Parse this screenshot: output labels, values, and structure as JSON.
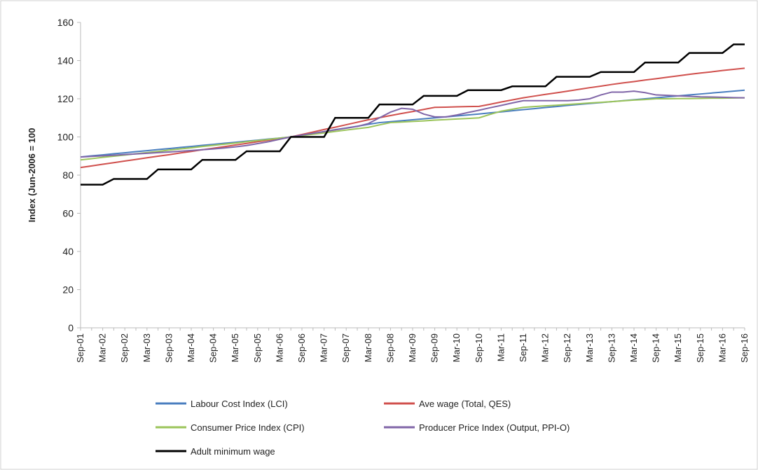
{
  "chart_data": {
    "type": "line",
    "y_label": "Index (Jun-2006 = 100",
    "categories": [
      "Sep-01",
      null,
      "Mar-02",
      null,
      "Sep-02",
      null,
      "Mar-03",
      null,
      "Sep-03",
      null,
      "Mar-04",
      null,
      "Sep-04",
      null,
      "Mar-05",
      null,
      "Sep-05",
      null,
      "Mar-06",
      null,
      "Sep-06",
      null,
      "Mar-07",
      null,
      "Sep-07",
      null,
      "Mar-08",
      null,
      "Sep-08",
      null,
      "Mar-09",
      null,
      "Sep-09",
      null,
      "Mar-10",
      null,
      "Sep-10",
      null,
      "Mar-11",
      null,
      "Sep-11",
      null,
      "Mar-12",
      null,
      "Sep-12",
      null,
      "Mar-13",
      null,
      "Sep-13",
      null,
      "Mar-14",
      null,
      "Sep-14",
      null,
      "Mar-15",
      null,
      "Sep-15",
      null,
      "Mar-16",
      null,
      "Sep-16"
    ],
    "series": [
      {
        "name": "Labour Cost Index (LCI)",
        "color": "#4a7ebf",
        "values": [
          89.5,
          90.1,
          90.6,
          91.2,
          91.7,
          92.3,
          92.8,
          93.4,
          93.9,
          94.5,
          95.0,
          95.6,
          96.1,
          96.7,
          97.2,
          97.8,
          98.3,
          98.9,
          99.4,
          100,
          100.9,
          101.9,
          102.8,
          103.8,
          104.7,
          105.6,
          106.6,
          107.5,
          108,
          108.5,
          109,
          109.5,
          110,
          110.5,
          111,
          111.5,
          112,
          112.6,
          113.1,
          113.7,
          114.3,
          114.8,
          115.4,
          115.9,
          116.5,
          117,
          117.5,
          118,
          118.5,
          119,
          119.5,
          120,
          120.5,
          121,
          121.5,
          122,
          122.5,
          123,
          123.5,
          124,
          124.5
        ]
      },
      {
        "name": "Ave wage (Total, QES)",
        "color": "#d0504d",
        "values": [
          84,
          84.8,
          85.7,
          86.5,
          87.4,
          88.2,
          89.1,
          89.9,
          90.7,
          91.6,
          92.4,
          93.3,
          94.1,
          94.9,
          95.8,
          96.6,
          97.5,
          98.3,
          99.2,
          100,
          101.3,
          102.6,
          103.9,
          105.1,
          106.4,
          107.7,
          109,
          110.1,
          111.2,
          112.3,
          113.3,
          114.4,
          115.5,
          115.6,
          115.8,
          115.9,
          116,
          117.1,
          118.3,
          119.4,
          120.5,
          121.4,
          122.3,
          123.1,
          124,
          124.9,
          125.8,
          126.6,
          127.5,
          128.3,
          129,
          129.8,
          130.5,
          131.3,
          132,
          132.8,
          133.5,
          134.1,
          134.8,
          135.4,
          136
        ]
      },
      {
        "name": "Consumer Price Index (CPI)",
        "color": "#9bc45a",
        "values": [
          88,
          88.6,
          89.3,
          89.9,
          90.5,
          91.2,
          91.8,
          92.4,
          93.1,
          93.7,
          94.3,
          95,
          95.6,
          96.2,
          96.8,
          97.5,
          98.1,
          98.7,
          99.4,
          100,
          100.7,
          101.4,
          102.1,
          102.9,
          103.6,
          104.3,
          105,
          106.3,
          107.5,
          107.8,
          108.1,
          108.4,
          108.8,
          109.1,
          109.4,
          109.7,
          110,
          111.8,
          113.5,
          114.5,
          115.5,
          115.9,
          116.3,
          116.6,
          117,
          117.4,
          117.8,
          118.1,
          118.5,
          118.9,
          119.3,
          119.6,
          120,
          120,
          120.1,
          120.1,
          120.2,
          120.3,
          120.3,
          120.4,
          120.5
        ]
      },
      {
        "name": "Producer Price Index (Output, PPI-O)",
        "color": "#8066a8",
        "values": [
          89.5,
          89.8,
          90.1,
          90.4,
          90.8,
          91.1,
          91.4,
          91.8,
          92.1,
          92.5,
          92.9,
          93.3,
          93.7,
          94.2,
          94.8,
          95.5,
          96.5,
          97.5,
          98.8,
          100,
          101,
          101.9,
          102.8,
          103.7,
          104.6,
          105.5,
          107,
          110,
          113,
          115,
          114.5,
          112,
          110.5,
          110.5,
          111.5,
          112.8,
          114,
          115.3,
          116.5,
          117.8,
          119,
          119,
          119,
          119,
          119,
          119.3,
          120,
          122,
          123.5,
          123.5,
          124,
          123.2,
          122,
          121.8,
          121.5,
          121.3,
          121,
          120.9,
          120.8,
          120.6,
          120.5
        ]
      },
      {
        "name": "Adult minimum wage",
        "color": "#000000",
        "values": [
          75,
          75,
          75,
          78,
          78,
          78,
          78,
          83,
          83,
          83,
          83,
          88,
          88,
          88,
          88,
          92.5,
          92.5,
          92.5,
          92.5,
          100,
          100,
          100,
          100,
          110,
          110,
          110,
          110,
          117,
          117,
          117,
          117,
          121.5,
          121.5,
          121.5,
          121.5,
          124.5,
          124.5,
          124.5,
          124.5,
          126.5,
          126.5,
          126.5,
          126.5,
          131.5,
          131.5,
          131.5,
          131.5,
          134,
          134,
          134,
          134,
          139,
          139,
          139,
          139,
          144,
          144,
          144,
          144,
          148.5,
          148.5
        ]
      }
    ],
    "ylim": [
      0,
      160
    ],
    "yticks": [
      0,
      20,
      40,
      60,
      80,
      100,
      120,
      140,
      160
    ],
    "grid": false,
    "legend": "bottom"
  }
}
